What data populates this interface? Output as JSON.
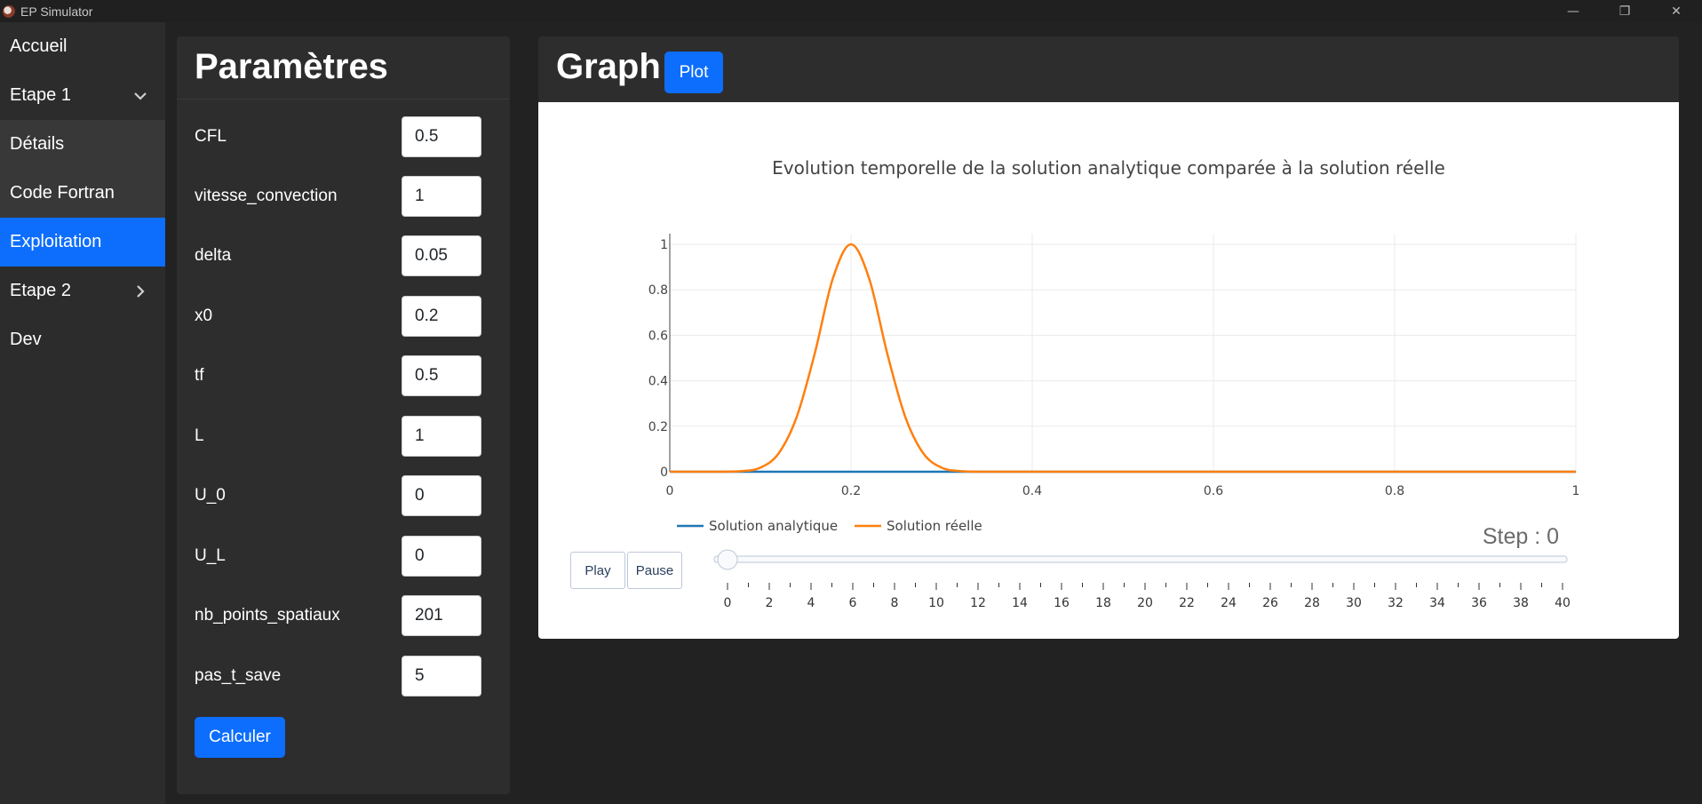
{
  "window": {
    "title": "EP Simulator",
    "controls": [
      "—",
      "❐",
      "✕"
    ]
  },
  "sidebar": {
    "items": [
      {
        "label": "Accueil"
      },
      {
        "label": "Etape 1",
        "chevron": "chevron-down"
      },
      {
        "label": "Détails"
      },
      {
        "label": "Code Fortran"
      },
      {
        "label": "Exploitation",
        "active": true
      },
      {
        "label": "Etape 2",
        "chevron": "chevron-right"
      },
      {
        "label": "Dev"
      }
    ]
  },
  "params": {
    "title": "Paramètres",
    "fields": [
      {
        "label": "CFL",
        "value": "0.5"
      },
      {
        "label": "vitesse_convection",
        "value": "1"
      },
      {
        "label": "delta",
        "value": "0.05"
      },
      {
        "label": "x0",
        "value": "0.2"
      },
      {
        "label": "tf",
        "value": "0.5"
      },
      {
        "label": "L",
        "value": "1"
      },
      {
        "label": "U_0",
        "value": "0"
      },
      {
        "label": "U_L",
        "value": "0"
      },
      {
        "label": "nb_points_spatiaux",
        "value": "201"
      },
      {
        "label": "pas_t_save",
        "value": "5"
      }
    ],
    "calc_label": "Calculer"
  },
  "graph": {
    "title": "Graph",
    "plot_label": "Plot",
    "play_label": "Play",
    "pause_label": "Pause",
    "step_text": "Step : 0"
  },
  "colors": {
    "accent": "#0d6efd",
    "analytic": "#1f77b4",
    "real": "#ff7f0e"
  },
  "chart_data": {
    "type": "line",
    "title": "Evolution temporelle de la solution analytique comparée à la solution réelle",
    "xlabel": "",
    "ylabel": "",
    "xlim": [
      0,
      1
    ],
    "ylim": [
      0,
      1
    ],
    "xticks": [
      "0",
      "0.2",
      "0.4",
      "0.6",
      "0.8",
      "1"
    ],
    "yticks": [
      "0",
      "0.2",
      "0.4",
      "0.6",
      "0.8",
      "1"
    ],
    "grid": true,
    "legend_position": "bottom-left",
    "series": [
      {
        "name": "Solution analytique",
        "x": [
          0,
          1
        ],
        "y": [
          0,
          0
        ]
      },
      {
        "name": "Solution réelle",
        "x": [
          0,
          0.05,
          0.08,
          0.1,
          0.12,
          0.14,
          0.16,
          0.18,
          0.2,
          0.22,
          0.24,
          0.26,
          0.28,
          0.3,
          0.32,
          0.35,
          0.4,
          0.6,
          0.8,
          1
        ],
        "y": [
          0,
          0,
          0.003,
          0.018,
          0.08,
          0.24,
          0.52,
          0.85,
          1,
          0.85,
          0.52,
          0.24,
          0.08,
          0.018,
          0.003,
          0,
          0,
          0,
          0,
          0
        ]
      }
    ],
    "slider": {
      "value": 0,
      "min": 0,
      "max": 40,
      "labels": [
        "0",
        "2",
        "4",
        "6",
        "8",
        "10",
        "12",
        "14",
        "16",
        "18",
        "20",
        "22",
        "24",
        "26",
        "28",
        "30",
        "32",
        "34",
        "36",
        "38",
        "40"
      ]
    }
  }
}
